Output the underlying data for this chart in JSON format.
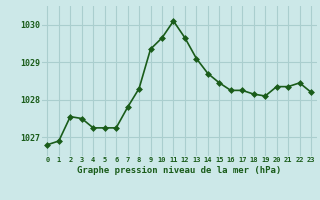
{
  "x": [
    0,
    1,
    2,
    3,
    4,
    5,
    6,
    7,
    8,
    9,
    10,
    11,
    12,
    13,
    14,
    15,
    16,
    17,
    18,
    19,
    20,
    21,
    22,
    23
  ],
  "y": [
    1026.8,
    1026.9,
    1027.55,
    1027.5,
    1027.25,
    1027.25,
    1027.25,
    1027.8,
    1028.3,
    1029.35,
    1029.65,
    1030.1,
    1029.65,
    1029.1,
    1028.7,
    1028.45,
    1028.25,
    1028.25,
    1028.15,
    1028.1,
    1028.35,
    1028.35,
    1028.45,
    1028.2
  ],
  "bg_color": "#cce8e8",
  "line_color": "#1a5c1a",
  "marker_color": "#1a5c1a",
  "grid_color": "#aacece",
  "xlabel": "Graphe pression niveau de la mer (hPa)",
  "xlabel_color": "#1a5c1a",
  "tick_color": "#1a5c1a",
  "ylim": [
    1026.5,
    1030.5
  ],
  "yticks": [
    1027,
    1028,
    1029,
    1030
  ],
  "xticks": [
    0,
    1,
    2,
    3,
    4,
    5,
    6,
    7,
    8,
    9,
    10,
    11,
    12,
    13,
    14,
    15,
    16,
    17,
    18,
    19,
    20,
    21,
    22,
    23
  ],
  "xtick_labels": [
    "0",
    "1",
    "2",
    "3",
    "4",
    "5",
    "6",
    "7",
    "8",
    "9",
    "10",
    "11",
    "12",
    "13",
    "14",
    "15",
    "16",
    "17",
    "18",
    "19",
    "20",
    "21",
    "22",
    "23"
  ],
  "line_width": 1.2,
  "marker_size": 3,
  "marker_style": "D"
}
